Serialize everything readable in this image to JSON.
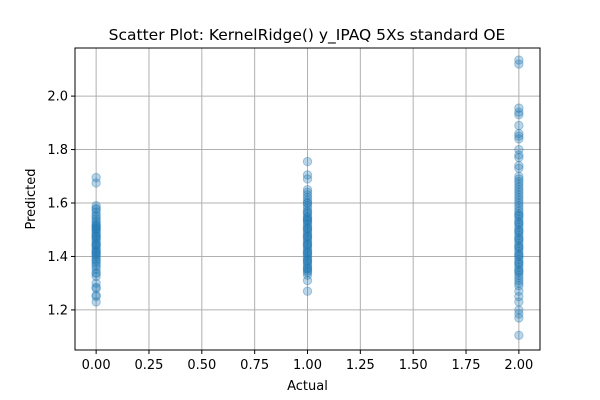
{
  "chart_data": {
    "type": "scatter",
    "title": "Scatter Plot: KernelRidge() y_IPAQ 5Xs standard OE",
    "xlabel": "Actual",
    "ylabel": "Predicted",
    "xlim": [
      -0.1,
      2.1
    ],
    "ylim": [
      1.05,
      2.18
    ],
    "grid": true,
    "marker_color": "#1f77b4",
    "marker_alpha": 0.3,
    "x_ticks": [
      0.0,
      0.25,
      0.5,
      0.75,
      1.0,
      1.25,
      1.5,
      1.75,
      2.0
    ],
    "x_tick_labels": [
      "0.00",
      "0.25",
      "0.50",
      "0.75",
      "1.00",
      "1.25",
      "1.50",
      "1.75",
      "2.00"
    ],
    "y_ticks": [
      1.2,
      1.4,
      1.6,
      1.8,
      2.0
    ],
    "y_tick_labels": [
      "1.2",
      "1.4",
      "1.6",
      "1.8",
      "2.0"
    ],
    "series": [
      {
        "x": [
          0,
          0,
          0,
          0,
          0,
          0,
          0,
          0,
          0,
          0,
          0,
          0,
          0,
          0,
          0,
          0,
          0,
          0,
          0,
          0,
          0,
          0,
          0,
          0,
          0,
          0,
          0,
          0,
          0,
          0,
          0,
          0,
          0,
          0,
          0,
          0,
          0,
          0,
          0,
          0,
          0,
          0,
          0,
          0,
          0,
          0,
          0,
          0,
          0,
          0
        ],
        "y": [
          1.695,
          1.675,
          1.59,
          1.58,
          1.575,
          1.565,
          1.555,
          1.548,
          1.54,
          1.532,
          1.525,
          1.518,
          1.51,
          1.505,
          1.498,
          1.49,
          1.485,
          1.478,
          1.47,
          1.465,
          1.458,
          1.45,
          1.445,
          1.438,
          1.43,
          1.424,
          1.418,
          1.41,
          1.405,
          1.398,
          1.39,
          1.384,
          1.378,
          1.37,
          1.362,
          1.352,
          1.34,
          1.335,
          1.325,
          1.3,
          1.285,
          1.28,
          1.255,
          1.25,
          1.23,
          1.515,
          1.502,
          1.475,
          1.442,
          1.415
        ]
      },
      {
        "x": [
          1,
          1,
          1,
          1,
          1,
          1,
          1,
          1,
          1,
          1,
          1,
          1,
          1,
          1,
          1,
          1,
          1,
          1,
          1,
          1,
          1,
          1,
          1,
          1,
          1,
          1,
          1,
          1,
          1,
          1,
          1,
          1,
          1,
          1,
          1,
          1,
          1,
          1,
          1,
          1,
          1,
          1,
          1,
          1,
          1,
          1,
          1,
          1,
          1,
          1,
          1,
          1,
          1,
          1,
          1
        ],
        "y": [
          1.755,
          1.705,
          1.69,
          1.65,
          1.64,
          1.63,
          1.62,
          1.61,
          1.6,
          1.59,
          1.58,
          1.57,
          1.56,
          1.55,
          1.545,
          1.54,
          1.532,
          1.525,
          1.518,
          1.51,
          1.502,
          1.495,
          1.488,
          1.48,
          1.472,
          1.465,
          1.458,
          1.45,
          1.442,
          1.435,
          1.428,
          1.42,
          1.412,
          1.405,
          1.398,
          1.39,
          1.382,
          1.375,
          1.368,
          1.36,
          1.352,
          1.345,
          1.34,
          1.33,
          1.31,
          1.27,
          1.565,
          1.535,
          1.505,
          1.475,
          1.445,
          1.415,
          1.385,
          1.355,
          1.6
        ]
      },
      {
        "x": [
          2,
          2,
          2,
          2,
          2,
          2,
          2,
          2,
          2,
          2,
          2,
          2,
          2,
          2,
          2,
          2,
          2,
          2,
          2,
          2,
          2,
          2,
          2,
          2,
          2,
          2,
          2,
          2,
          2,
          2,
          2,
          2,
          2,
          2,
          2,
          2,
          2,
          2,
          2,
          2,
          2,
          2,
          2,
          2,
          2,
          2,
          2,
          2,
          2,
          2,
          2,
          2,
          2,
          2,
          2,
          2,
          2,
          2,
          2,
          2,
          2,
          2,
          2,
          2,
          2,
          2,
          2,
          2,
          2,
          2,
          2
        ],
        "y": [
          2.135,
          2.12,
          1.955,
          1.94,
          1.93,
          1.89,
          1.86,
          1.85,
          1.84,
          1.8,
          1.78,
          1.77,
          1.74,
          1.73,
          1.7,
          1.69,
          1.68,
          1.67,
          1.66,
          1.65,
          1.64,
          1.63,
          1.62,
          1.61,
          1.6,
          1.59,
          1.58,
          1.57,
          1.56,
          1.55,
          1.54,
          1.53,
          1.52,
          1.51,
          1.5,
          1.49,
          1.48,
          1.47,
          1.46,
          1.45,
          1.44,
          1.43,
          1.42,
          1.41,
          1.4,
          1.39,
          1.38,
          1.37,
          1.36,
          1.35,
          1.34,
          1.33,
          1.32,
          1.31,
          1.3,
          1.29,
          1.27,
          1.25,
          1.23,
          1.2,
          1.185,
          1.17,
          1.105,
          1.555,
          1.525,
          1.495,
          1.465,
          1.435,
          1.405,
          1.375,
          1.345
        ]
      }
    ]
  }
}
